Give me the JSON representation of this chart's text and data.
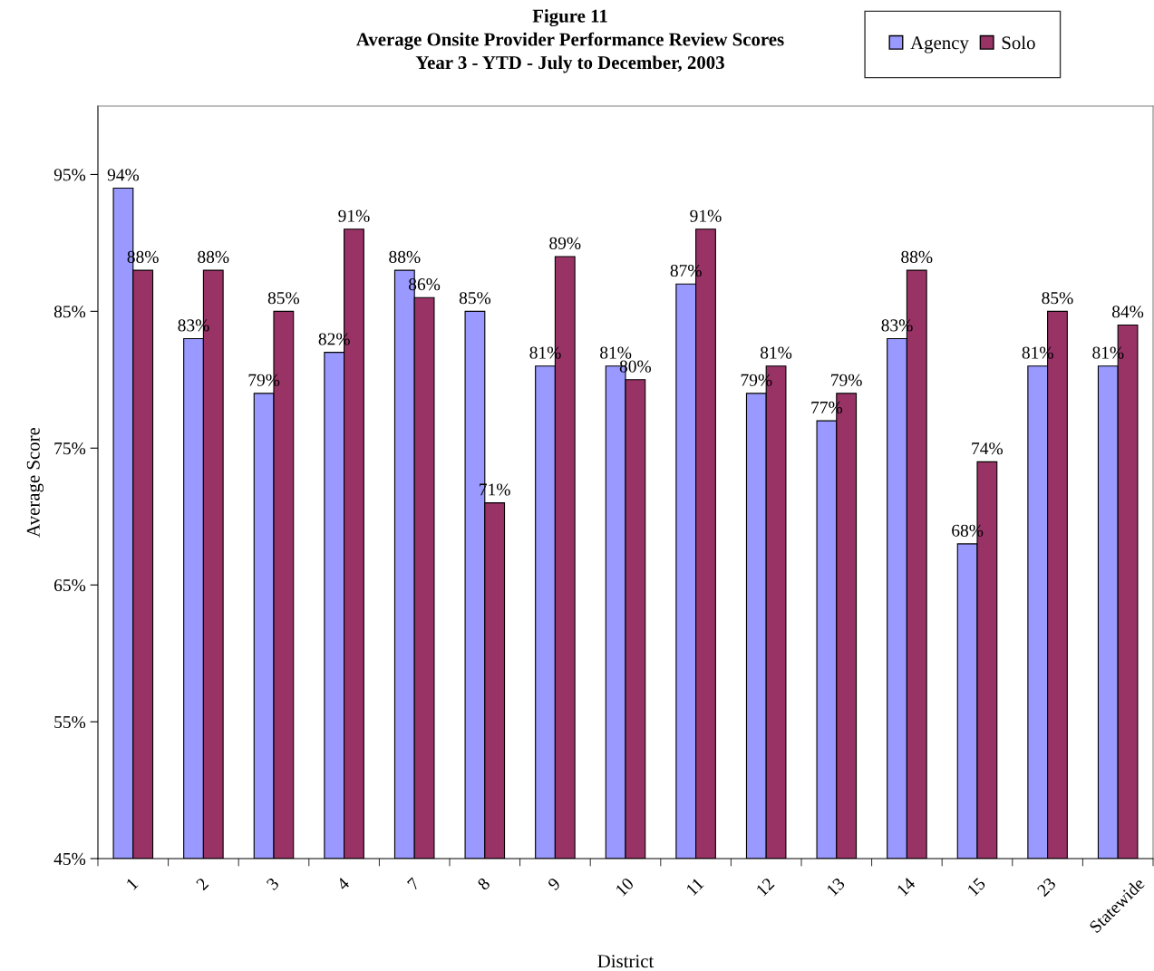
{
  "chart_data": {
    "type": "bar",
    "title": "Figure 11\nAverage Onsite Provider Performance Review Scores\nYear 3 - YTD - July to December, 2003",
    "xlabel": "District",
    "ylabel": "Average Score",
    "categories": [
      "1",
      "2",
      "3",
      "4",
      "7",
      "8",
      "9",
      "10",
      "11",
      "12",
      "13",
      "14",
      "15",
      "23",
      "Statewide"
    ],
    "series": [
      {
        "name": "Agency",
        "color": "#9999ff",
        "values": [
          94,
          83,
          79,
          82,
          88,
          85,
          81,
          81,
          87,
          79,
          77,
          83,
          68,
          81,
          81
        ],
        "value_labels": [
          "94%",
          "83%",
          "79%",
          "82%",
          "88%",
          "85%",
          "81%",
          "81%",
          "87%",
          "79%",
          "77%",
          "83%",
          "68%",
          "81%",
          "81%"
        ]
      },
      {
        "name": "Solo",
        "color": "#993366",
        "values": [
          88,
          88,
          85,
          91,
          86,
          71,
          89,
          80,
          91,
          81,
          79,
          88,
          74,
          85,
          84
        ],
        "value_labels": [
          "88%",
          "88%",
          "85%",
          "91%",
          "86%",
          "71%",
          "89%",
          "80%",
          "91%",
          "81%",
          "79%",
          "88%",
          "74%",
          "85%",
          "84%"
        ]
      }
    ],
    "ylim": [
      45,
      100
    ],
    "yticks": [
      {
        "value": 45,
        "label": "45%"
      },
      {
        "value": 55,
        "label": "55%"
      },
      {
        "value": 65,
        "label": "65%"
      },
      {
        "value": 75,
        "label": "75%"
      },
      {
        "value": 85,
        "label": "85%"
      },
      {
        "value": 95,
        "label": "95%"
      }
    ],
    "grid": false,
    "legend": "top right"
  }
}
